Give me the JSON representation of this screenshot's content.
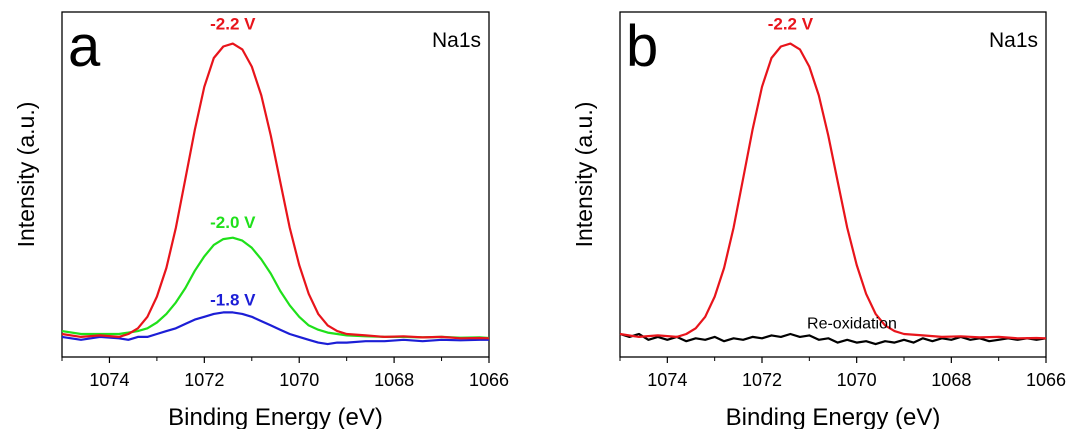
{
  "chart_data": [
    {
      "type": "line",
      "panel_label": "a",
      "xlabel": "Binding Energy (eV)",
      "ylabel": "Intensity (a.u.)",
      "annotation": "Na1s",
      "xlim": [
        1075,
        1066
      ],
      "ylim": [
        -0.06,
        1.14
      ],
      "x_reversed": true,
      "ticks": [
        1074,
        1072,
        1070,
        1068,
        1066
      ],
      "grid": false,
      "series": [
        {
          "name": "-2.2 V",
          "color": "#e8141b",
          "label_x": 1071.4,
          "label_y": 1.1,
          "x": [
            1075.0,
            1074.6,
            1074.2,
            1073.8,
            1073.6,
            1073.4,
            1073.2,
            1073.0,
            1072.8,
            1072.6,
            1072.4,
            1072.2,
            1072.0,
            1071.8,
            1071.6,
            1071.4,
            1071.2,
            1071.0,
            1070.8,
            1070.6,
            1070.4,
            1070.2,
            1070.0,
            1069.8,
            1069.6,
            1069.4,
            1069.2,
            1069.0,
            1068.6,
            1068.2,
            1067.8,
            1067.4,
            1067.0,
            1066.6,
            1066.2,
            1066.0
          ],
          "y": [
            0.02,
            0.01,
            0.015,
            0.01,
            0.02,
            0.04,
            0.08,
            0.15,
            0.25,
            0.39,
            0.56,
            0.73,
            0.88,
            0.98,
            1.02,
            1.03,
            1.01,
            0.95,
            0.85,
            0.71,
            0.55,
            0.39,
            0.26,
            0.16,
            0.09,
            0.05,
            0.03,
            0.02,
            0.015,
            0.01,
            0.012,
            0.008,
            0.01,
            0.005,
            0.006,
            0.005
          ]
        },
        {
          "name": "-2.0 V",
          "color": "#1fe01a",
          "label_x": 1071.4,
          "label_y": 0.41,
          "x": [
            1075.0,
            1074.6,
            1074.2,
            1073.8,
            1073.6,
            1073.4,
            1073.2,
            1073.0,
            1072.8,
            1072.6,
            1072.4,
            1072.2,
            1072.0,
            1071.8,
            1071.6,
            1071.4,
            1071.2,
            1071.0,
            1070.8,
            1070.6,
            1070.4,
            1070.2,
            1070.0,
            1069.8,
            1069.6,
            1069.4,
            1069.2,
            1069.0,
            1068.6,
            1068.2,
            1067.8,
            1067.4,
            1067.0,
            1066.6,
            1066.2,
            1066.0
          ],
          "y": [
            0.03,
            0.02,
            0.02,
            0.02,
            0.025,
            0.03,
            0.04,
            0.06,
            0.09,
            0.13,
            0.18,
            0.24,
            0.29,
            0.33,
            0.35,
            0.355,
            0.345,
            0.32,
            0.28,
            0.23,
            0.17,
            0.12,
            0.08,
            0.05,
            0.035,
            0.025,
            0.02,
            0.015,
            0.012,
            0.01,
            0.01,
            0.008,
            0.01,
            0.007,
            0.008,
            0.006
          ]
        },
        {
          "name": "-1.8 V",
          "color": "#1c1ed6",
          "label_x": 1071.4,
          "label_y": 0.14,
          "x": [
            1075.0,
            1074.6,
            1074.2,
            1073.8,
            1073.6,
            1073.4,
            1073.2,
            1073.0,
            1072.8,
            1072.6,
            1072.4,
            1072.2,
            1072.0,
            1071.8,
            1071.6,
            1071.4,
            1071.2,
            1071.0,
            1070.8,
            1070.6,
            1070.4,
            1070.2,
            1070.0,
            1069.8,
            1069.6,
            1069.4,
            1069.2,
            1069.0,
            1068.6,
            1068.2,
            1067.8,
            1067.4,
            1067.0,
            1066.6,
            1066.2,
            1066.0
          ],
          "y": [
            0.01,
            0.0,
            0.01,
            0.005,
            0.0,
            0.01,
            0.01,
            0.02,
            0.03,
            0.04,
            0.055,
            0.07,
            0.08,
            0.09,
            0.095,
            0.095,
            0.09,
            0.08,
            0.065,
            0.05,
            0.035,
            0.02,
            0.01,
            0.0,
            -0.01,
            -0.015,
            -0.01,
            -0.01,
            -0.005,
            -0.005,
            0.0,
            -0.005,
            0.0,
            -0.002,
            0.0,
            0.0
          ]
        }
      ]
    },
    {
      "type": "line",
      "panel_label": "b",
      "xlabel": "Binding Energy (eV)",
      "ylabel": "Intensity (a.u.)",
      "annotation": "Na1s",
      "xlim": [
        1075,
        1066
      ],
      "ylim": [
        -0.06,
        1.14
      ],
      "x_reversed": true,
      "ticks": [
        1074,
        1072,
        1070,
        1068,
        1066
      ],
      "grid": false,
      "series": [
        {
          "name": "-2.2 V",
          "color": "#e8141b",
          "label_x": 1071.4,
          "label_y": 1.1,
          "x": [
            1075.0,
            1074.6,
            1074.2,
            1073.8,
            1073.6,
            1073.4,
            1073.2,
            1073.0,
            1072.8,
            1072.6,
            1072.4,
            1072.2,
            1072.0,
            1071.8,
            1071.6,
            1071.4,
            1071.2,
            1071.0,
            1070.8,
            1070.6,
            1070.4,
            1070.2,
            1070.0,
            1069.8,
            1069.6,
            1069.4,
            1069.2,
            1069.0,
            1068.6,
            1068.2,
            1067.8,
            1067.4,
            1067.0,
            1066.6,
            1066.2,
            1066.0
          ],
          "y": [
            0.02,
            0.01,
            0.015,
            0.01,
            0.02,
            0.04,
            0.08,
            0.15,
            0.25,
            0.39,
            0.56,
            0.73,
            0.88,
            0.98,
            1.02,
            1.03,
            1.01,
            0.95,
            0.85,
            0.71,
            0.55,
            0.39,
            0.26,
            0.16,
            0.09,
            0.05,
            0.03,
            0.02,
            0.015,
            0.01,
            0.012,
            0.008,
            0.01,
            0.005,
            0.006,
            0.005
          ]
        },
        {
          "name": "Re-oxidation",
          "color": "#000000",
          "label_x": 1070.1,
          "label_y": 0.06,
          "x": [
            1075.0,
            1074.8,
            1074.6,
            1074.4,
            1074.2,
            1074.0,
            1073.8,
            1073.6,
            1073.4,
            1073.2,
            1073.0,
            1072.8,
            1072.6,
            1072.4,
            1072.2,
            1072.0,
            1071.8,
            1071.6,
            1071.4,
            1071.2,
            1071.0,
            1070.8,
            1070.6,
            1070.4,
            1070.2,
            1070.0,
            1069.8,
            1069.6,
            1069.4,
            1069.2,
            1069.0,
            1068.8,
            1068.6,
            1068.4,
            1068.2,
            1068.0,
            1067.8,
            1067.6,
            1067.4,
            1067.2,
            1067.0,
            1066.8,
            1066.6,
            1066.4,
            1066.2,
            1066.0
          ],
          "y": [
            0.02,
            0.01,
            0.02,
            0.0,
            0.01,
            0.0,
            0.01,
            -0.005,
            0.005,
            0.0,
            0.01,
            -0.005,
            0.005,
            0.0,
            0.01,
            0.005,
            0.015,
            0.01,
            0.02,
            0.01,
            0.015,
            0.0,
            0.005,
            -0.01,
            0.0,
            -0.01,
            -0.005,
            -0.015,
            -0.005,
            -0.01,
            0.0,
            -0.01,
            0.005,
            -0.005,
            0.005,
            0.0,
            0.01,
            0.0,
            0.005,
            -0.005,
            0.0,
            0.005,
            0.0,
            0.005,
            0.0,
            0.005
          ]
        }
      ]
    }
  ]
}
